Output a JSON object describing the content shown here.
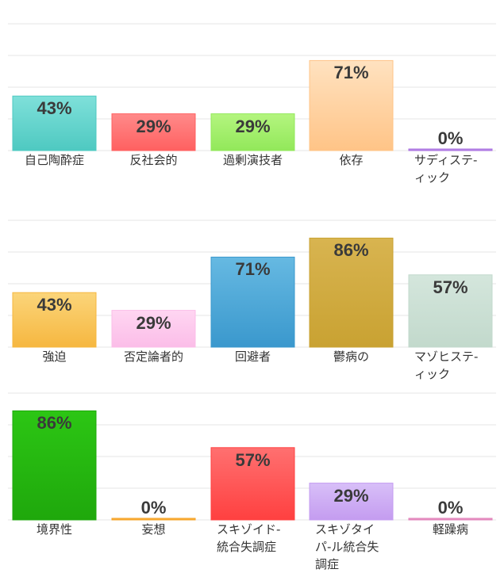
{
  "chart_data": [
    {
      "type": "bar",
      "ylim": [
        0,
        100
      ],
      "grid": true,
      "categories": [
        "自己陶酔症",
        "反社会的",
        "過剰演技者",
        "依存",
        "サディステ-ィック"
      ],
      "values": [
        43,
        29,
        29,
        71,
        0
      ],
      "value_labels": [
        "43%",
        "29%",
        "29%",
        "71%",
        "0%"
      ],
      "colors": [
        [
          "#7fe0da",
          "#4ec9c1"
        ],
        [
          "#ff8a8a",
          "#ff6060"
        ],
        [
          "#b4f57f",
          "#92e85a"
        ],
        [
          "#ffe2c0",
          "#ffc487"
        ],
        [
          "#c9a4ee",
          "#a86fe0"
        ]
      ]
    },
    {
      "type": "bar",
      "ylim": [
        0,
        100
      ],
      "grid": true,
      "categories": [
        "強迫",
        "否定論者的",
        "回避者",
        "鬱病の",
        "マゾヒステ-ィック"
      ],
      "values": [
        43,
        29,
        71,
        86,
        57
      ],
      "value_labels": [
        "43%",
        "29%",
        "71%",
        "86%",
        "57%"
      ],
      "colors": [
        [
          "#fbd57a",
          "#f6b740"
        ],
        [
          "#ffd6f2",
          "#fbbde8"
        ],
        [
          "#66b9e2",
          "#3a98cd"
        ],
        [
          "#d8b450",
          "#c9a232"
        ],
        [
          "#d4e6dc",
          "#c2d9cc"
        ]
      ]
    },
    {
      "type": "bar",
      "ylim": [
        0,
        100
      ],
      "grid": true,
      "categories": [
        "境界性",
        "妄想",
        "スキゾイド-統合失調症",
        "スキゾタイパ-ル統合失調症",
        "軽躁病"
      ],
      "values": [
        86,
        0,
        57,
        29,
        0
      ],
      "value_labels": [
        "86%",
        "0%",
        "57%",
        "29%",
        "0%"
      ],
      "colors": [
        [
          "#2cc614",
          "#1fa80c"
        ],
        [
          "#ffc060",
          "#f5a020"
        ],
        [
          "#ff7070",
          "#ff4040"
        ],
        [
          "#d8bff8",
          "#c49cf0"
        ],
        [
          "#f0a8d0",
          "#e080b8"
        ]
      ]
    }
  ]
}
